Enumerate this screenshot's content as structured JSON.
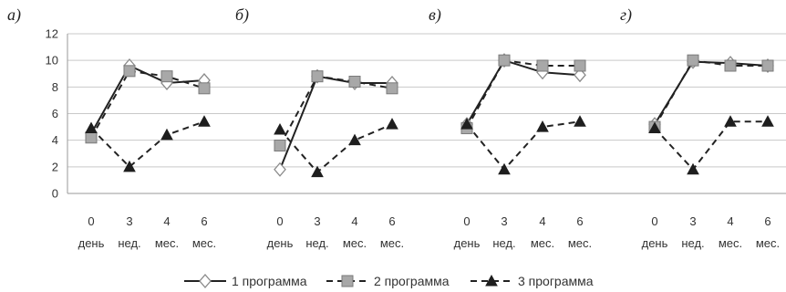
{
  "chart_data": {
    "type": "line",
    "ylim": [
      0,
      12
    ],
    "yticks": [
      0,
      2,
      4,
      6,
      8,
      10,
      12
    ],
    "grid": true,
    "legend_position": "bottom",
    "categories": [
      [
        "0",
        "день"
      ],
      [
        "3",
        "нед."
      ],
      [
        "4",
        "мес."
      ],
      [
        "6",
        "мес."
      ]
    ],
    "series_style": [
      {
        "color": "#222222",
        "dash": "solid",
        "marker": "diamond"
      },
      {
        "color": "#222222",
        "dash": "dashed",
        "marker": "square"
      },
      {
        "color": "#222222",
        "dash": "dashed",
        "marker": "triangle"
      }
    ],
    "legend": [
      "1 программа",
      "2 программа",
      "3 программа"
    ],
    "panels": [
      {
        "label": "а)",
        "series": [
          {
            "name": "1 программа",
            "values": [
              4.5,
              9.6,
              8.3,
              8.5
            ]
          },
          {
            "name": "2 программа",
            "values": [
              4.2,
              9.2,
              8.8,
              7.9
            ]
          },
          {
            "name": "3 программа",
            "values": [
              4.9,
              2.0,
              4.4,
              5.4
            ]
          }
        ]
      },
      {
        "label": "б)",
        "series": [
          {
            "name": "1 программа",
            "values": [
              1.8,
              8.8,
              8.3,
              8.3
            ]
          },
          {
            "name": "2 программа",
            "values": [
              3.6,
              8.8,
              8.4,
              7.9
            ]
          },
          {
            "name": "3 программа",
            "values": [
              4.8,
              1.6,
              4.0,
              5.2
            ]
          }
        ]
      },
      {
        "label": "в)",
        "series": [
          {
            "name": "1 программа",
            "values": [
              5.2,
              10.0,
              9.1,
              8.9
            ]
          },
          {
            "name": "2 программа",
            "values": [
              4.9,
              10.0,
              9.6,
              9.6
            ]
          },
          {
            "name": "3 программа",
            "values": [
              5.2,
              1.8,
              5.0,
              5.4
            ]
          }
        ]
      },
      {
        "label": "г)",
        "series": [
          {
            "name": "1 программа",
            "values": [
              5.2,
              9.9,
              9.8,
              9.6
            ]
          },
          {
            "name": "2 программа",
            "values": [
              5.0,
              10.0,
              9.6,
              9.6
            ]
          },
          {
            "name": "3 программа",
            "values": [
              4.9,
              1.8,
              5.4,
              5.4
            ]
          }
        ]
      }
    ]
  }
}
